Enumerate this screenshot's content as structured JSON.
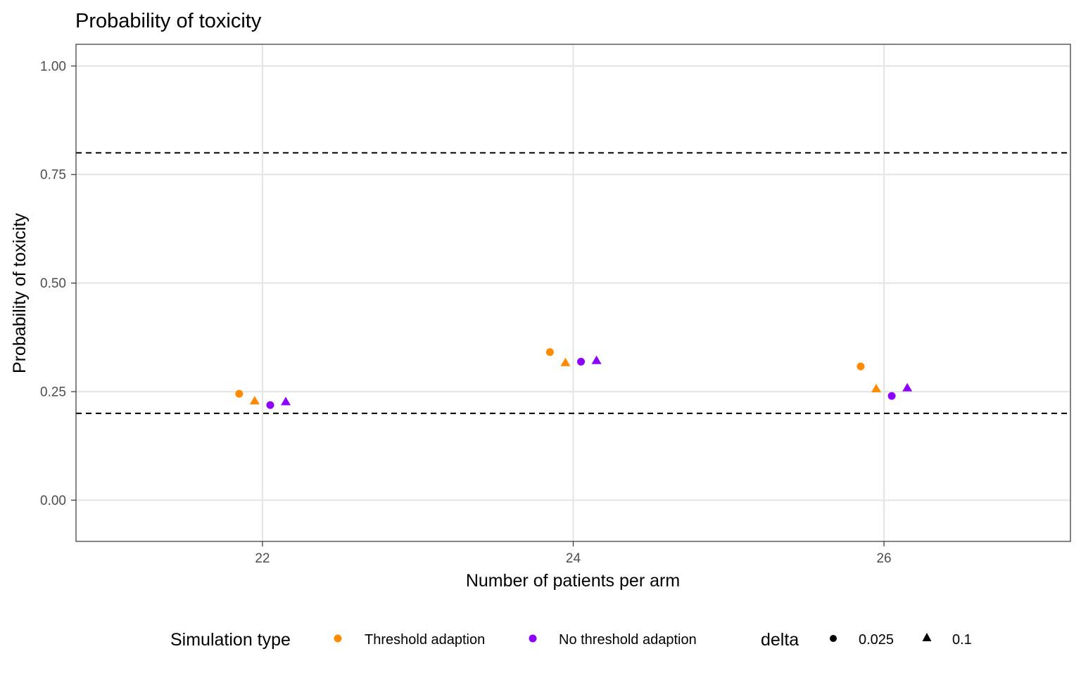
{
  "chart_data": {
    "type": "scatter",
    "title": "Probability of toxicity",
    "xlabel": "Number of patients per arm",
    "ylabel": "Probability of toxicity",
    "xlim": [
      20.8,
      27.2
    ],
    "ylim": [
      -0.095,
      1.05
    ],
    "x_ticks": [
      22,
      24,
      26
    ],
    "x_tick_labels": [
      "22",
      "24",
      "26"
    ],
    "y_ticks": [
      0,
      0.25,
      0.5,
      0.75,
      1.0
    ],
    "y_tick_labels": [
      "0.00",
      "0.25",
      "0.50",
      "0.75",
      "1.00"
    ],
    "grid": true,
    "reference_lines": [
      0.2,
      0.8
    ],
    "reference_line_style": "dashed",
    "legend": {
      "position": "bottom",
      "color_title": "Simulation type",
      "color_entries": [
        {
          "label": "Threshold adaption",
          "color": "#FF8C00"
        },
        {
          "label": "No threshold adaption",
          "color": "#8B00FF"
        }
      ],
      "shape_title": "delta",
      "shape_entries": [
        {
          "label": "0.025",
          "shape": "circle"
        },
        {
          "label": "0.1",
          "shape": "triangle"
        }
      ]
    },
    "dodge_width": 0.1,
    "points": [
      {
        "x": 22,
        "group": "Threshold adaption",
        "delta": "0.025",
        "y": 0.245
      },
      {
        "x": 22,
        "group": "Threshold adaption",
        "delta": "0.1",
        "y": 0.228
      },
      {
        "x": 22,
        "group": "No threshold adaption",
        "delta": "0.025",
        "y": 0.219
      },
      {
        "x": 22,
        "group": "No threshold adaption",
        "delta": "0.1",
        "y": 0.226
      },
      {
        "x": 24,
        "group": "Threshold adaption",
        "delta": "0.025",
        "y": 0.341
      },
      {
        "x": 24,
        "group": "Threshold adaption",
        "delta": "0.1",
        "y": 0.316
      },
      {
        "x": 24,
        "group": "No threshold adaption",
        "delta": "0.025",
        "y": 0.319
      },
      {
        "x": 24,
        "group": "No threshold adaption",
        "delta": "0.1",
        "y": 0.321
      },
      {
        "x": 26,
        "group": "Threshold adaption",
        "delta": "0.025",
        "y": 0.308
      },
      {
        "x": 26,
        "group": "Threshold adaption",
        "delta": "0.1",
        "y": 0.256
      },
      {
        "x": 26,
        "group": "No threshold adaption",
        "delta": "0.025",
        "y": 0.24
      },
      {
        "x": 26,
        "group": "No threshold adaption",
        "delta": "0.1",
        "y": 0.258
      }
    ]
  }
}
